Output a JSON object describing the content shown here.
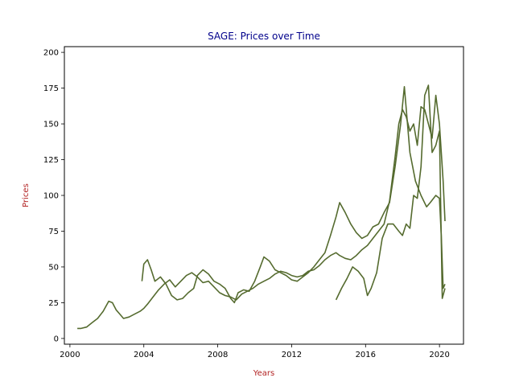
{
  "chart_data": {
    "type": "line",
    "title": "SAGE: Prices over Time",
    "xlabel": "Years",
    "ylabel": "Prices",
    "xlim": [
      1999.7,
      2021.3
    ],
    "ylim": [
      -4,
      204
    ],
    "x_ticks": [
      "2000",
      "2004",
      "2008",
      "2012",
      "2016",
      "2020"
    ],
    "y_ticks": [
      "0",
      "25",
      "50",
      "75",
      "100",
      "125",
      "150",
      "175",
      "200"
    ],
    "grid": false,
    "legend": "none",
    "colors": {
      "title": "#00008b",
      "axis_labels": "#b22222",
      "line": "#556b2f"
    },
    "series": [
      {
        "x": [
          2000.4,
          2000.6,
          2000.9,
          2001.2,
          2001.5,
          2001.8,
          2002.1,
          2002.3,
          2002.5,
          2002.7,
          2002.9,
          2003.2,
          2003.5,
          2003.8,
          2004.0,
          2004.2,
          2004.5,
          2004.8,
          2005.1,
          2005.4,
          2005.7,
          2006.0,
          2006.3,
          2006.6,
          2006.9,
          2007.2,
          2007.5,
          2007.8,
          2008.1,
          2008.4,
          2008.7,
          2009.0,
          2009.3,
          2009.6,
          2009.9,
          2010.2,
          2010.5,
          2010.8,
          2011.1,
          2011.4,
          2011.7,
          2012.0,
          2012.3,
          2012.6,
          2012.9,
          2013.2,
          2013.5,
          2013.8,
          2014.1,
          2014.4,
          2014.6,
          2014.9,
          2015.2,
          2015.5,
          2015.8,
          2016.1,
          2016.4,
          2016.7,
          2017.0,
          2017.3,
          2017.6,
          2017.8,
          2018.0,
          2018.2,
          2018.4,
          2018.6,
          2018.8,
          2019.0,
          2019.2,
          2019.4,
          2019.6,
          2019.8,
          2020.0,
          2020.2,
          2020.3
        ],
        "y": [
          7,
          7,
          8,
          11,
          14,
          19,
          26,
          25,
          20,
          17,
          14,
          15,
          17,
          19,
          21,
          24,
          29,
          34,
          38,
          41,
          36,
          40,
          44,
          46,
          43,
          39,
          40,
          36,
          32,
          30,
          29,
          27,
          31,
          33,
          35,
          38,
          40,
          42,
          45,
          47,
          46,
          44,
          43,
          44,
          47,
          48,
          51,
          55,
          58,
          60,
          58,
          56,
          55,
          58,
          62,
          65,
          70,
          75,
          80,
          96,
          127,
          150,
          160,
          155,
          145,
          150,
          135,
          162,
          160,
          150,
          140,
          170,
          150,
          110,
          82
        ]
      },
      {
        "x": [
          2003.9,
          2004.0,
          2004.2,
          2004.4,
          2004.6,
          2004.9,
          2005.2,
          2005.5,
          2005.8,
          2006.1,
          2006.4,
          2006.7,
          2006.9,
          2007.2,
          2007.5,
          2007.8,
          2008.1,
          2008.4,
          2008.7,
          2008.9,
          2009.1,
          2009.4,
          2009.7,
          2010.0,
          2010.3,
          2010.5,
          2010.8,
          2011.1,
          2011.4,
          2011.7,
          2012.0,
          2012.3,
          2012.6,
          2012.9,
          2013.2,
          2013.5,
          2013.8,
          2014.1,
          2014.4,
          2014.6,
          2014.9,
          2015.2,
          2015.5,
          2015.8,
          2016.1,
          2016.4,
          2016.7,
          2017.0,
          2017.3,
          2017.6,
          2017.9,
          2018.1,
          2018.4,
          2018.7,
          2019.0,
          2019.3,
          2019.5,
          2019.8,
          2020.0,
          2020.1,
          2020.2,
          2020.3
        ],
        "y": [
          40,
          52,
          55,
          48,
          40,
          43,
          38,
          30,
          27,
          28,
          32,
          35,
          44,
          48,
          45,
          40,
          38,
          35,
          28,
          25,
          32,
          34,
          33,
          40,
          50,
          57,
          54,
          48,
          46,
          44,
          41,
          40,
          43,
          46,
          50,
          55,
          60,
          72,
          85,
          95,
          88,
          80,
          74,
          70,
          72,
          78,
          80,
          88,
          95,
          120,
          150,
          176,
          130,
          110,
          100,
          92,
          95,
          100,
          98,
          72,
          35,
          38
        ]
      },
      {
        "x": [
          2014.4,
          2014.7,
          2015.0,
          2015.3,
          2015.6,
          2015.9,
          2016.1,
          2016.3,
          2016.6,
          2016.9,
          2017.2,
          2017.5,
          2017.8,
          2018.0,
          2018.2,
          2018.4,
          2018.6,
          2018.8,
          2019.0,
          2019.2,
          2019.4,
          2019.6,
          2019.8,
          2020.0,
          2020.15,
          2020.3
        ],
        "y": [
          27,
          35,
          42,
          50,
          47,
          42,
          30,
          35,
          46,
          70,
          80,
          80,
          75,
          72,
          80,
          77,
          100,
          98,
          120,
          170,
          177,
          130,
          135,
          145,
          28,
          35
        ]
      }
    ]
  }
}
